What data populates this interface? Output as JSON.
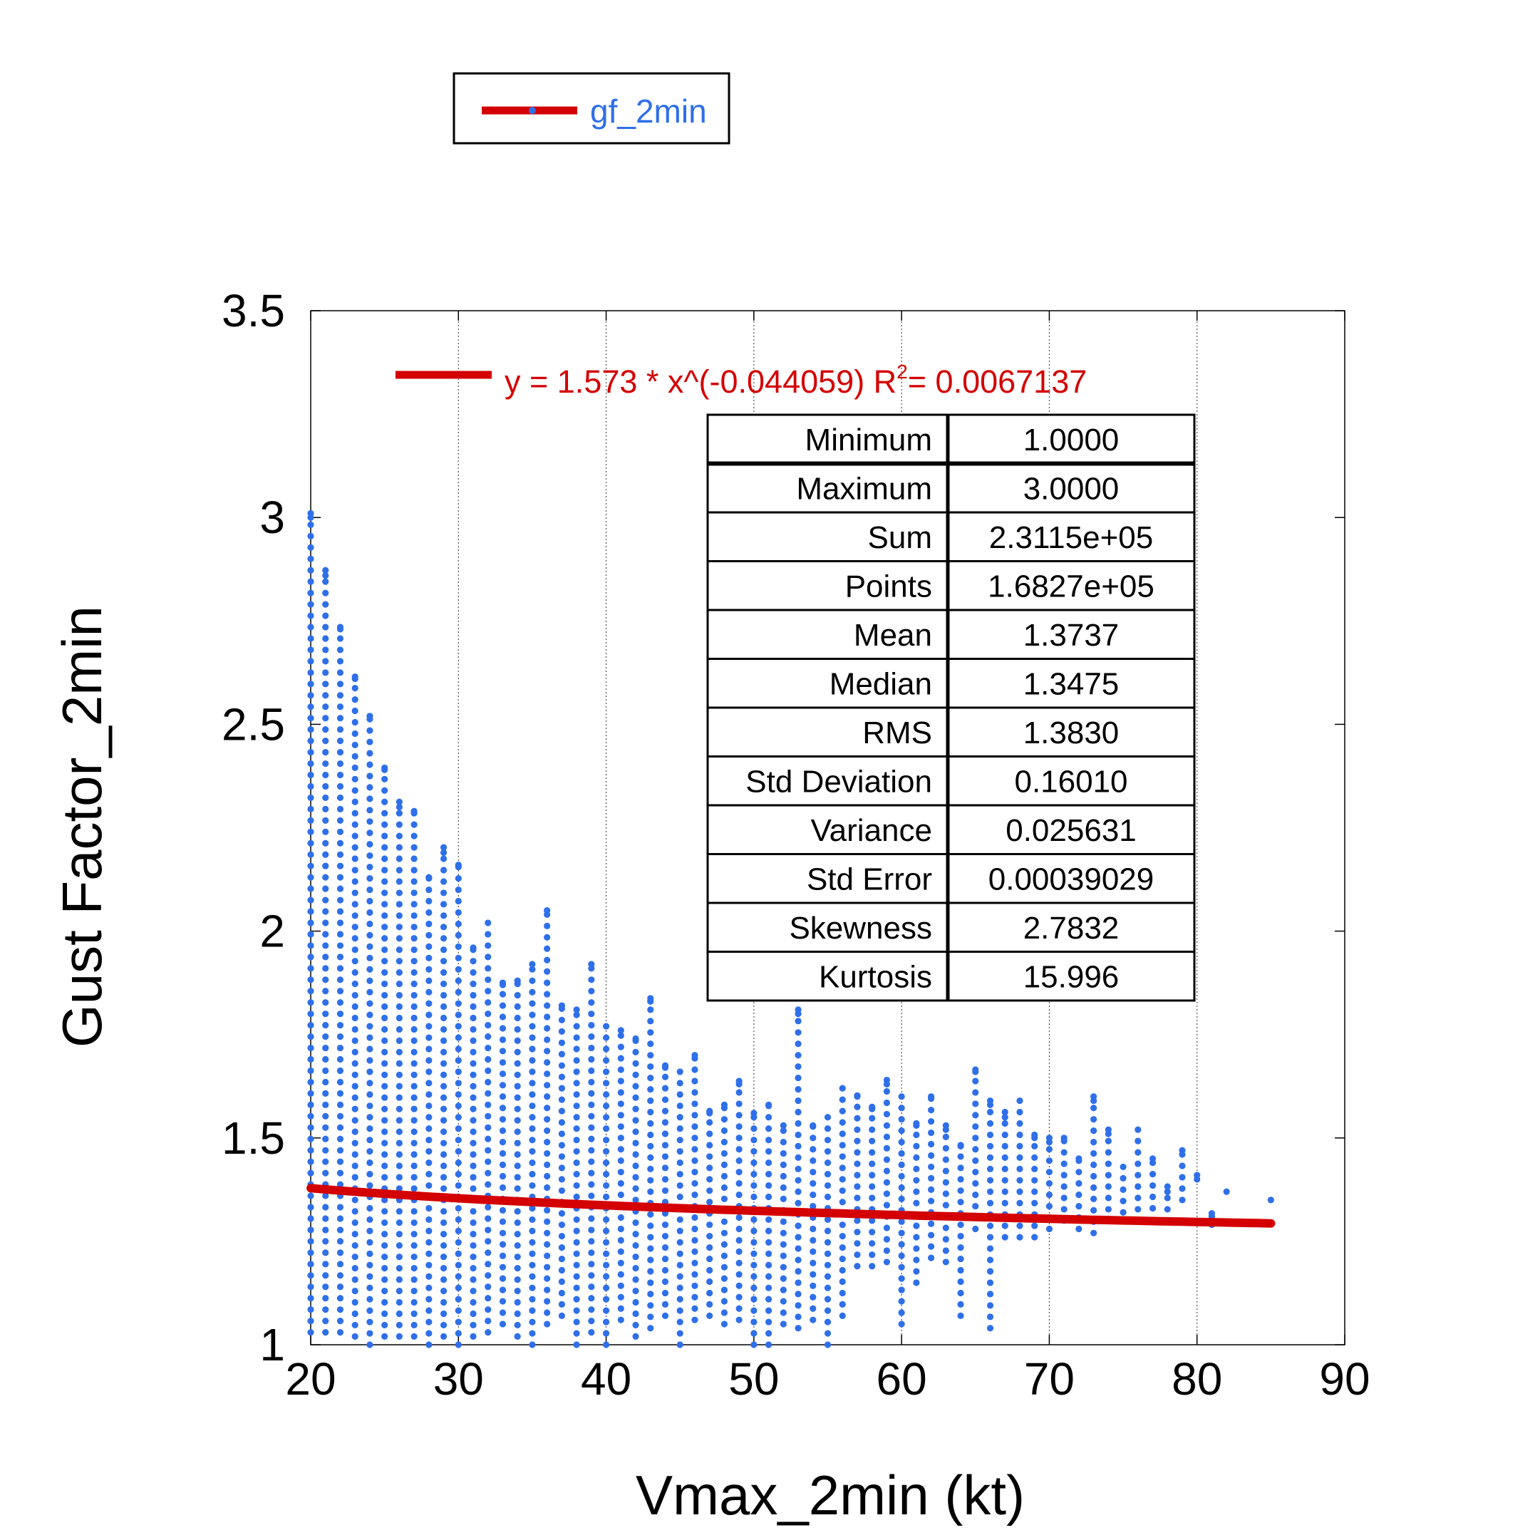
{
  "chart_data": {
    "type": "scatter",
    "xlabel": "Vmax_2min (kt)",
    "ylabel": "Gust Factor_2min",
    "xlim": [
      20,
      90
    ],
    "ylim": [
      1,
      3.5
    ],
    "x_ticks": [
      "20",
      "30",
      "40",
      "50",
      "60",
      "70",
      "80",
      "90"
    ],
    "y_ticks": [
      "1",
      "1.5",
      "2",
      "2.5",
      "3",
      "3.5"
    ],
    "x_tick_values": [
      20,
      30,
      40,
      50,
      60,
      70,
      80,
      90
    ],
    "y_tick_values": [
      1,
      1.5,
      2,
      2.5,
      3,
      3.5
    ],
    "grid": "vertical dotted",
    "series": [
      {
        "name": "gf_2min",
        "color": "#2f6fe8",
        "columns": [
          {
            "x": 20,
            "ymin": 1.03,
            "ymax": 3.0
          },
          {
            "x": 21,
            "ymin": 1.03,
            "ymax": 2.86
          },
          {
            "x": 22,
            "ymin": 1.03,
            "ymax": 2.73
          },
          {
            "x": 23,
            "ymin": 1.02,
            "ymax": 2.61
          },
          {
            "x": 24,
            "ymin": 1.0,
            "ymax": 2.52
          },
          {
            "x": 25,
            "ymin": 1.02,
            "ymax": 2.39
          },
          {
            "x": 26,
            "ymin": 1.02,
            "ymax": 2.3
          },
          {
            "x": 27,
            "ymin": 1.02,
            "ymax": 2.29
          },
          {
            "x": 28,
            "ymin": 1.0,
            "ymax": 2.13
          },
          {
            "x": 29,
            "ymin": 1.02,
            "ymax": 2.19
          },
          {
            "x": 30,
            "ymin": 1.0,
            "ymax": 2.16
          },
          {
            "x": 31,
            "ymin": 1.02,
            "ymax": 1.96
          },
          {
            "x": 32,
            "ymin": 1.03,
            "ymax": 2.02
          },
          {
            "x": 33,
            "ymin": 1.05,
            "ymax": 1.87
          },
          {
            "x": 34,
            "ymin": 1.02,
            "ymax": 1.88
          },
          {
            "x": 35,
            "ymin": 1.0,
            "ymax": 1.92
          },
          {
            "x": 36,
            "ymin": 1.05,
            "ymax": 2.05
          },
          {
            "x": 37,
            "ymin": 1.07,
            "ymax": 1.82
          },
          {
            "x": 38,
            "ymin": 1.0,
            "ymax": 1.81
          },
          {
            "x": 39,
            "ymin": 1.03,
            "ymax": 1.92
          },
          {
            "x": 40,
            "ymin": 1.0,
            "ymax": 1.77
          },
          {
            "x": 41,
            "ymin": 1.06,
            "ymax": 1.76
          },
          {
            "x": 42,
            "ymin": 1.02,
            "ymax": 1.74
          },
          {
            "x": 43,
            "ymin": 1.04,
            "ymax": 1.83
          },
          {
            "x": 44,
            "ymin": 1.07,
            "ymax": 1.67
          },
          {
            "x": 45,
            "ymin": 1.0,
            "ymax": 1.66
          },
          {
            "x": 46,
            "ymin": 1.06,
            "ymax": 1.7
          },
          {
            "x": 47,
            "ymin": 1.07,
            "ymax": 1.56
          },
          {
            "x": 48,
            "ymin": 1.05,
            "ymax": 1.58
          },
          {
            "x": 49,
            "ymin": 1.06,
            "ymax": 1.63
          },
          {
            "x": 50,
            "ymin": 1.0,
            "ymax": 1.56
          },
          {
            "x": 51,
            "ymin": 1.0,
            "ymax": 1.58
          },
          {
            "x": 52,
            "ymin": 1.05,
            "ymax": 1.53
          },
          {
            "x": 53,
            "ymin": 1.04,
            "ymax": 1.8
          },
          {
            "x": 54,
            "ymin": 1.06,
            "ymax": 1.53
          },
          {
            "x": 55,
            "ymin": 1.0,
            "ymax": 1.55
          },
          {
            "x": 56,
            "ymin": 1.07,
            "ymax": 1.62
          },
          {
            "x": 57,
            "ymin": 1.19,
            "ymax": 1.6
          },
          {
            "x": 58,
            "ymin": 1.19,
            "ymax": 1.57
          },
          {
            "x": 59,
            "ymin": 1.2,
            "ymax": 1.63
          },
          {
            "x": 60,
            "ymin": 1.05,
            "ymax": 1.6
          },
          {
            "x": 61,
            "ymin": 1.15,
            "ymax": 1.53
          },
          {
            "x": 62,
            "ymin": 1.21,
            "ymax": 1.6
          },
          {
            "x": 63,
            "ymin": 1.2,
            "ymax": 1.52
          },
          {
            "x": 64,
            "ymin": 1.07,
            "ymax": 1.48
          },
          {
            "x": 65,
            "ymin": 1.28,
            "ymax": 1.66
          },
          {
            "x": 66,
            "ymin": 1.04,
            "ymax": 1.58
          },
          {
            "x": 67,
            "ymin": 1.26,
            "ymax": 1.55
          },
          {
            "x": 68,
            "ymin": 1.26,
            "ymax": 1.59
          },
          {
            "x": 69,
            "ymin": 1.26,
            "ymax": 1.5
          },
          {
            "x": 70,
            "ymin": 1.28,
            "ymax": 1.49
          },
          {
            "x": 71,
            "ymin": 1.3,
            "ymax": 1.5
          },
          {
            "x": 72,
            "ymin": 1.28,
            "ymax": 1.45
          },
          {
            "x": 73,
            "ymin": 1.27,
            "ymax": 1.59
          },
          {
            "x": 74,
            "ymin": 1.3,
            "ymax": 1.51
          },
          {
            "x": 75,
            "ymin": 1.32,
            "ymax": 1.43
          },
          {
            "x": 76,
            "ymin": 1.3,
            "ymax": 1.52
          },
          {
            "x": 77,
            "ymin": 1.33,
            "ymax": 1.45
          },
          {
            "x": 78,
            "ymin": 1.3,
            "ymax": 1.37
          },
          {
            "x": 79,
            "ymin": 1.35,
            "ymax": 1.47
          },
          {
            "x": 80,
            "ymin": 1.4,
            "ymax": 1.41
          },
          {
            "x": 81,
            "ymin": 1.29,
            "ymax": 1.31
          },
          {
            "x": 82,
            "ymin": 1.37,
            "ymax": 1.37
          },
          {
            "x": 85,
            "ymin": 1.35,
            "ymax": 1.35
          }
        ]
      }
    ],
    "fit": {
      "a": 1.573,
      "b": -0.044059,
      "x_range": [
        20,
        85
      ],
      "color": "#d40000",
      "label_prefix": "y = 1.573 * x^(-0.044059)   R",
      "label_sup": "2",
      "label_suffix": "= 0.0067137"
    },
    "legend": {
      "position": "top-left",
      "label": "gf_2min",
      "text_color": "#2f6fe8",
      "line_color": "#d40000"
    },
    "stats": [
      {
        "name": "Minimum",
        "value": "1.0000"
      },
      {
        "name": "Maximum",
        "value": "3.0000"
      },
      {
        "name": "Sum",
        "value": "2.3115e+05"
      },
      {
        "name": "Points",
        "value": "1.6827e+05"
      },
      {
        "name": "Mean",
        "value": "1.3737"
      },
      {
        "name": "Median",
        "value": "1.3475"
      },
      {
        "name": "RMS",
        "value": "1.3830"
      },
      {
        "name": "Std Deviation",
        "value": "0.16010"
      },
      {
        "name": "Variance",
        "value": "0.025631"
      },
      {
        "name": "Std Error",
        "value": "0.00039029"
      },
      {
        "name": "Skewness",
        "value": "2.7832"
      },
      {
        "name": "Kurtosis",
        "value": "15.996"
      }
    ]
  }
}
